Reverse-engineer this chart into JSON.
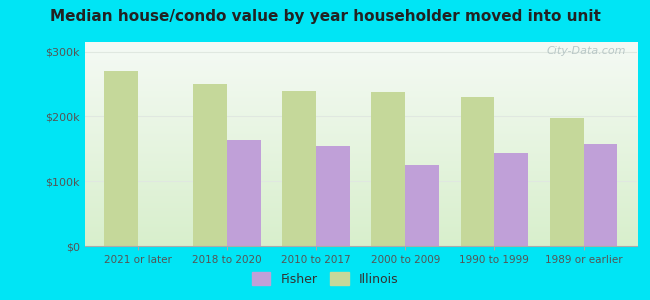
{
  "title": "Median house/condo value by year householder moved into unit",
  "categories": [
    "2021 or later",
    "2018 to 2020",
    "2010 to 2017",
    "2000 to 2009",
    "1990 to 1999",
    "1989 or earlier"
  ],
  "fisher_values": [
    null,
    163000,
    155000,
    125000,
    143000,
    158000
  ],
  "illinois_values": [
    270000,
    250000,
    240000,
    238000,
    230000,
    198000
  ],
  "fisher_color": "#c0a0d8",
  "illinois_color": "#c5d89a",
  "background_color": "#00e5f5",
  "plot_bg_top": "#f5faf5",
  "plot_bg_bottom": "#d8efcc",
  "yticks": [
    0,
    100000,
    200000,
    300000
  ],
  "ytick_labels": [
    "$0",
    "$100k",
    "$200k",
    "$300k"
  ],
  "ylim": [
    0,
    315000
  ],
  "watermark": "City-Data.com",
  "legend_labels": [
    "Fisher",
    "Illinois"
  ],
  "bar_width": 0.38,
  "grid_color": "#e0e8e0"
}
